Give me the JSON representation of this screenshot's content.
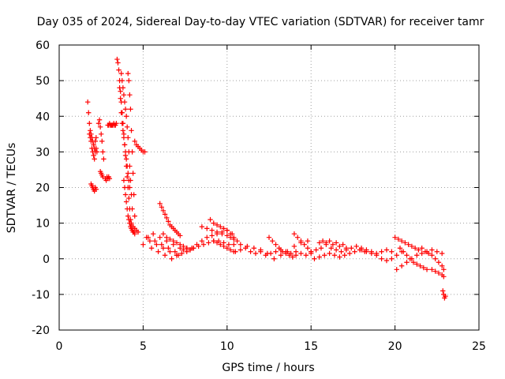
{
  "chart_data": {
    "type": "scatter",
    "title": "Day 035 of 2024, Sidereal Day-to-day VTEC variation (SDTVAR) for receiver tamr",
    "xlabel": "GPS time / hours",
    "ylabel": "SDTVAR / TECUs",
    "xlim": [
      0,
      25
    ],
    "ylim": [
      -20,
      60
    ],
    "xticks": [
      0,
      5,
      10,
      15,
      20,
      25
    ],
    "yticks": [
      -20,
      -10,
      0,
      10,
      20,
      30,
      40,
      50,
      60
    ],
    "xtick_labels": [
      "0",
      "5",
      "10",
      "15",
      "20",
      "25"
    ],
    "ytick_labels": [
      "-20",
      "-10",
      "0",
      "10",
      "20",
      "30",
      "40",
      "50",
      "60"
    ],
    "grid": true,
    "marker": "+",
    "color": "#ff0000",
    "series": [
      {
        "name": "SDTVAR",
        "x": [
          1.7,
          1.75,
          1.8,
          1.85,
          1.9,
          1.95,
          2.0,
          2.05,
          2.1,
          2.15,
          2.2,
          2.25,
          1.8,
          1.85,
          1.9,
          1.95,
          2.0,
          2.05,
          2.1,
          2.15,
          2.2,
          1.9,
          1.95,
          2.0,
          2.05,
          2.1,
          2.15,
          2.2,
          2.35,
          2.4,
          2.45,
          2.5,
          2.55,
          2.6,
          2.65,
          2.45,
          2.5,
          2.55,
          2.6,
          2.75,
          2.8,
          2.85,
          2.9,
          2.95,
          3.0,
          2.9,
          2.95,
          3.0,
          3.05,
          3.1,
          3.15,
          3.2,
          3.25,
          3.3,
          3.35,
          3.4,
          3.45,
          3.5,
          3.55,
          3.6,
          3.65,
          3.7,
          3.75,
          3.8,
          3.85,
          3.9,
          3.95,
          4.0,
          4.05,
          4.1,
          4.15,
          4.2,
          4.25,
          4.3,
          3.6,
          3.65,
          3.7,
          3.75,
          3.8,
          3.85,
          3.9,
          3.95,
          4.0,
          4.05,
          4.1,
          4.15,
          4.2,
          3.7,
          3.75,
          3.8,
          3.85,
          3.9,
          3.95,
          4.0,
          4.05,
          4.1,
          4.15,
          4.2,
          4.25,
          4.3,
          4.35,
          3.85,
          3.9,
          3.95,
          4.0,
          4.05,
          4.1,
          4.15,
          4.2,
          4.25,
          4.3,
          4.35,
          4.4,
          4.45,
          4.5,
          4.1,
          4.15,
          4.2,
          4.25,
          4.3,
          4.35,
          4.4,
          4.45,
          4.5,
          4.5,
          4.6,
          4.7,
          4.8,
          4.9,
          5.0,
          5.1,
          4.3,
          4.4,
          4.5,
          4.6,
          4.7,
          5.0,
          5.2,
          5.4,
          5.6,
          5.8,
          6.0,
          6.2,
          6.4,
          6.6,
          6.8,
          7.0,
          7.2,
          7.4,
          7.6,
          7.8,
          8.0,
          5.3,
          5.5,
          5.7,
          5.9,
          6.1,
          6.3,
          6.5,
          6.7,
          6.9,
          7.1,
          6.0,
          6.1,
          6.2,
          6.3,
          6.4,
          6.5,
          6.6,
          6.7,
          6.8,
          6.9,
          7.0,
          7.1,
          7.2,
          6.2,
          6.4,
          6.6,
          6.8,
          7.0,
          7.2,
          7.4,
          7.6,
          7.8,
          7.0,
          7.3,
          7.6,
          7.9,
          8.2,
          8.5,
          8.8,
          9.1,
          9.4,
          9.7,
          10.0,
          10.3,
          8.0,
          8.3,
          8.6,
          8.9,
          9.2,
          9.5,
          9.8,
          10.1,
          10.4,
          8.5,
          8.8,
          9.1,
          9.4,
          9.7,
          10.0,
          10.2,
          10.4,
          9.0,
          9.2,
          9.4,
          9.6,
          9.8,
          10.0,
          10.2,
          10.4,
          10.6,
          9.2,
          9.4,
          9.6,
          9.8,
          10.0,
          10.2,
          10.4,
          10.5,
          10.8,
          11.1,
          11.4,
          11.7,
          12.0,
          12.3,
          12.6,
          12.9,
          13.2,
          13.5,
          13.8,
          14.1,
          14.4,
          14.7,
          15.0,
          10.8,
          11.2,
          11.6,
          12.0,
          12.4,
          12.8,
          13.2,
          13.6,
          14.0,
          14.4,
          14.8,
          12.5,
          12.7,
          12.9,
          13.1,
          13.3,
          13.5,
          13.7,
          13.9,
          14.1,
          14.0,
          14.2,
          14.4,
          14.6,
          14.8,
          15.0,
          15.0,
          15.3,
          15.6,
          15.9,
          16.2,
          16.5,
          16.8,
          17.1,
          17.4,
          17.7,
          18.0,
          18.3,
          18.6,
          18.9,
          19.2,
          19.5,
          19.8,
          15.2,
          15.5,
          15.8,
          16.1,
          16.4,
          16.7,
          17.0,
          17.3,
          17.6,
          17.9,
          18.2,
          15.5,
          15.7,
          15.9,
          16.1,
          16.3,
          16.5,
          16.7,
          16.9,
          17.1,
          18.0,
          18.3,
          18.6,
          18.9,
          19.2,
          19.5,
          19.8,
          20.1,
          20.4,
          20.0,
          20.2,
          20.4,
          20.6,
          20.8,
          21.0,
          21.2,
          21.4,
          21.6,
          21.8,
          22.0,
          22.2,
          22.4,
          22.6,
          22.8,
          22.9,
          20.1,
          20.4,
          20.7,
          21.0,
          21.3,
          21.6,
          21.9,
          22.2,
          22.5,
          22.8,
          20.3,
          20.5,
          20.7,
          20.9,
          21.1,
          21.3,
          21.5,
          21.7,
          21.9,
          22.2,
          22.4,
          22.6,
          22.8,
          22.9,
          22.85,
          22.9,
          22.95,
          23.0
        ],
        "y": [
          44,
          41,
          38,
          36,
          35,
          34,
          33,
          32,
          31,
          30,
          31,
          30,
          35,
          34,
          33,
          31,
          30,
          29,
          28,
          33,
          34,
          21,
          20.5,
          20,
          19.5,
          19,
          20,
          19.5,
          38,
          39,
          37,
          35,
          33,
          30,
          28,
          24.5,
          24,
          23.5,
          23,
          22.5,
          22,
          23,
          22.5,
          23,
          22.5,
          37.5,
          37.5,
          38,
          37.5,
          37.5,
          37.5,
          37.5,
          38,
          37.5,
          37.5,
          38,
          56,
          55,
          53,
          50,
          47,
          44,
          41,
          38,
          35,
          32,
          29,
          26,
          23,
          20,
          17,
          14,
          11,
          9.5,
          48,
          45,
          41,
          38,
          36,
          34,
          32,
          30,
          28,
          26,
          24,
          22,
          20,
          52,
          50,
          48,
          46,
          44,
          42,
          40,
          37,
          34,
          30,
          26,
          22,
          18,
          14,
          22,
          20,
          18,
          16,
          14,
          12,
          11,
          10,
          9,
          8.5,
          8,
          7.5,
          7.5,
          7,
          52,
          50,
          46,
          42,
          36,
          30,
          24,
          18,
          12,
          33,
          32,
          31.5,
          31,
          30.5,
          30,
          30,
          10,
          9,
          8.5,
          8,
          7.5,
          4,
          6,
          5,
          7,
          4,
          6,
          3,
          5,
          2,
          4,
          1,
          3,
          2.5,
          3,
          2.5,
          3,
          6,
          3,
          5,
          2,
          4,
          1,
          3,
          0,
          2,
          1,
          15.5,
          14.5,
          13.5,
          12.5,
          11.5,
          10.5,
          9.5,
          9,
          8.5,
          8,
          7.5,
          7,
          6.5,
          7,
          6,
          5.5,
          5,
          4.5,
          4,
          3.5,
          3,
          2.5,
          1,
          1.5,
          2,
          3,
          4,
          5,
          6,
          6.5,
          7,
          7.5,
          8,
          7,
          3,
          3.5,
          4,
          4.5,
          5,
          5,
          4.5,
          4,
          4,
          9,
          8.5,
          8,
          7.5,
          7,
          6.5,
          6,
          5.5,
          11,
          10,
          9.5,
          9,
          8.5,
          8,
          7,
          6,
          5,
          5,
          4.5,
          4,
          3.5,
          3,
          2.5,
          2,
          2,
          2.5,
          3,
          2,
          1.5,
          2,
          1,
          1.5,
          2,
          2.5,
          2,
          1.5,
          2,
          1.5,
          1,
          1.5,
          4,
          3.5,
          3,
          2.5,
          1.5,
          0,
          1,
          2,
          3.5,
          4.5,
          5,
          6,
          5,
          4,
          3,
          2,
          1.5,
          1,
          0.5,
          1,
          7,
          6,
          5,
          4,
          3,
          2,
          2,
          2.5,
          3,
          4,
          3,
          2.5,
          2,
          2.5,
          3,
          3.5,
          3,
          2.5,
          2,
          1.5,
          2,
          2.5,
          2,
          0,
          0.5,
          1,
          1.5,
          1,
          0.5,
          1,
          1.5,
          2,
          2.5,
          2,
          4.5,
          5,
          4.5,
          5,
          4,
          4.5,
          3.5,
          4,
          3,
          2.5,
          2,
          1.5,
          1,
          0,
          -0.5,
          0,
          1,
          2,
          6,
          5.5,
          5,
          4.5,
          4,
          3.5,
          3,
          2.5,
          3,
          2,
          1.5,
          1,
          0,
          -1,
          -2,
          -3,
          -3,
          -2,
          -1,
          0,
          1,
          1.5,
          2,
          2.5,
          2,
          1.5,
          3,
          2,
          1,
          0,
          -1,
          -1.5,
          -2,
          -2.5,
          -3,
          -3,
          -3.5,
          -4,
          -4.5,
          -5,
          -9,
          -10,
          -11,
          -10.5
        ]
      }
    ]
  }
}
